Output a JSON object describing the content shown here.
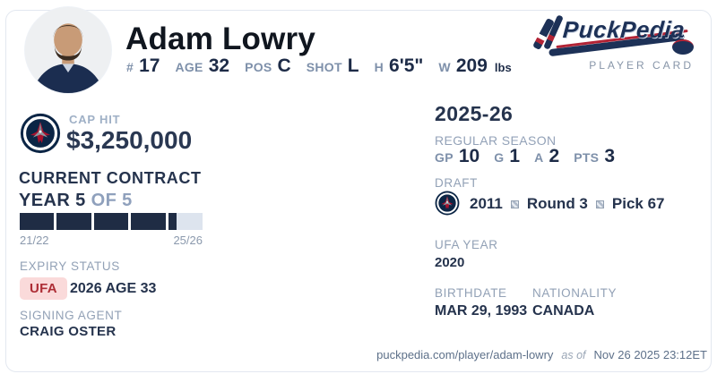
{
  "colors": {
    "navy_text": "#25334d",
    "dark_value": "#1d2b47",
    "gray_label": "#92a1b6",
    "bar_filled": "#1f2c44",
    "bar_empty": "#dde4ee",
    "ufa_red": "#ad2d35",
    "ufa_bg": "#fadada",
    "logo_navy": "#1d3157",
    "logo_red": "#b22335",
    "card_border": "#e3e8f0"
  },
  "header": {
    "name": "Adam Lowry",
    "stats": [
      {
        "label": "#",
        "value": "17"
      },
      {
        "label": "AGE",
        "value": "32"
      },
      {
        "label": "POS",
        "value": "C"
      },
      {
        "label": "SHOT",
        "value": "L"
      },
      {
        "label": "H",
        "value": "6'5\""
      },
      {
        "label": "W",
        "value": "209",
        "suffix": "lbs"
      }
    ],
    "logo_text": "PuckPedia",
    "logo_subtitle": "PLAYER CARD"
  },
  "cap_hit": {
    "label": "CAP HIT",
    "value": "$3,250,000"
  },
  "contract": {
    "section_title": "CURRENT CONTRACT",
    "year_current": "YEAR 5",
    "year_of": "OF 5",
    "progress_segments": [
      1,
      1,
      1,
      1,
      0.25
    ],
    "start_label": "21/22",
    "end_label": "25/26",
    "expiry_label": "EXPIRY STATUS",
    "expiry_badge": "UFA",
    "expiry_detail": "2026 AGE 33",
    "agent_label": "SIGNING AGENT",
    "agent_name": "CRAIG OSTER"
  },
  "season": {
    "title": "2025-26",
    "subtitle": "REGULAR SEASON",
    "stats": [
      {
        "label": "GP",
        "value": "10"
      },
      {
        "label": "G",
        "value": "1"
      },
      {
        "label": "A",
        "value": "2"
      },
      {
        "label": "PTS",
        "value": "3"
      }
    ]
  },
  "draft": {
    "label": "DRAFT",
    "parts": [
      "2011",
      "Round 3",
      "Pick 67"
    ]
  },
  "ufa_year": {
    "label": "UFA YEAR",
    "value": "2020"
  },
  "birthdate": {
    "label": "BIRTHDATE",
    "value": "MAR 29, 1993"
  },
  "nationality": {
    "label": "NATIONALITY",
    "value": "CANADA"
  },
  "footer": {
    "url": "puckpedia.com/player/adam-lowry",
    "as_of": "as of",
    "timestamp": "Nov 26 2025 23:12ET"
  }
}
